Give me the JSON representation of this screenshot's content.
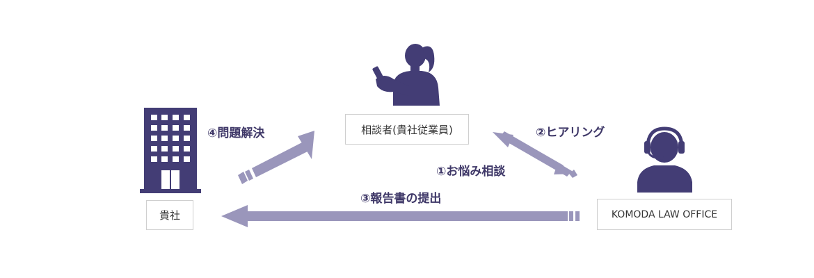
{
  "colors": {
    "icon": "#433d75",
    "arrow": "#9a96bb",
    "label": "#3f3868",
    "box_border": "#cfcfcf"
  },
  "nodes": {
    "company": {
      "label": "貴社",
      "icon": "building-icon"
    },
    "consultant": {
      "label": "相談者(貴社従業員)",
      "icon": "woman-with-phone-icon"
    },
    "law_office": {
      "label": "KOMODA LAW OFFICE",
      "icon": "headset-operator-icon"
    }
  },
  "steps": {
    "step1": "①お悩み相談",
    "step2": "②ヒアリング",
    "step3": "③報告書の提出",
    "step4": "④問題解決"
  }
}
